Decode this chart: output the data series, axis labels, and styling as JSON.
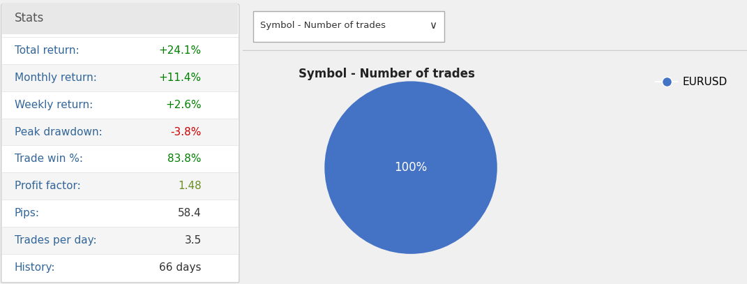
{
  "stats_title": "Stats",
  "stats_rows": [
    {
      "label": "Total return:",
      "value": "+24.1%",
      "value_color": "#008000",
      "bg": "#ffffff"
    },
    {
      "label": "Monthly return:",
      "value": "+11.4%",
      "value_color": "#008000",
      "bg": "#f5f5f5"
    },
    {
      "label": "Weekly return:",
      "value": "+2.6%",
      "value_color": "#008000",
      "bg": "#ffffff"
    },
    {
      "label": "Peak drawdown:",
      "value": "-3.8%",
      "value_color": "#cc0000",
      "bg": "#f5f5f5"
    },
    {
      "label": "Trade win %:",
      "value": "83.8%",
      "value_color": "#008000",
      "bg": "#ffffff"
    },
    {
      "label": "Profit factor:",
      "value": "1.48",
      "value_color": "#6b8e23",
      "bg": "#f5f5f5"
    },
    {
      "label": "Pips:",
      "value": "58.4",
      "value_color": "#333333",
      "bg": "#ffffff"
    },
    {
      "label": "Trades per day:",
      "value": "3.5",
      "value_color": "#333333",
      "bg": "#f5f5f5"
    },
    {
      "label": "History:",
      "value": "66 days",
      "value_color": "#333333",
      "bg": "#ffffff"
    }
  ],
  "pie_title": "Symbol - Number of trades",
  "pie_labels": [
    "EURUSD"
  ],
  "pie_values": [
    100
  ],
  "pie_colors": [
    "#4472c4"
  ],
  "pie_text_label": "100%",
  "pie_text_color": "#ffffff",
  "dropdown_label": "Symbol - Number of trades",
  "left_panel_bg": "#ffffff",
  "left_panel_border": "#cccccc",
  "stats_header_bg": "#e8e8e8",
  "right_top_bg": "#f0f0f0",
  "chart_bg": "#ffffff",
  "label_color": "#336699",
  "label_fontsize": 11,
  "value_fontsize": 11,
  "stats_title_fontsize": 12
}
